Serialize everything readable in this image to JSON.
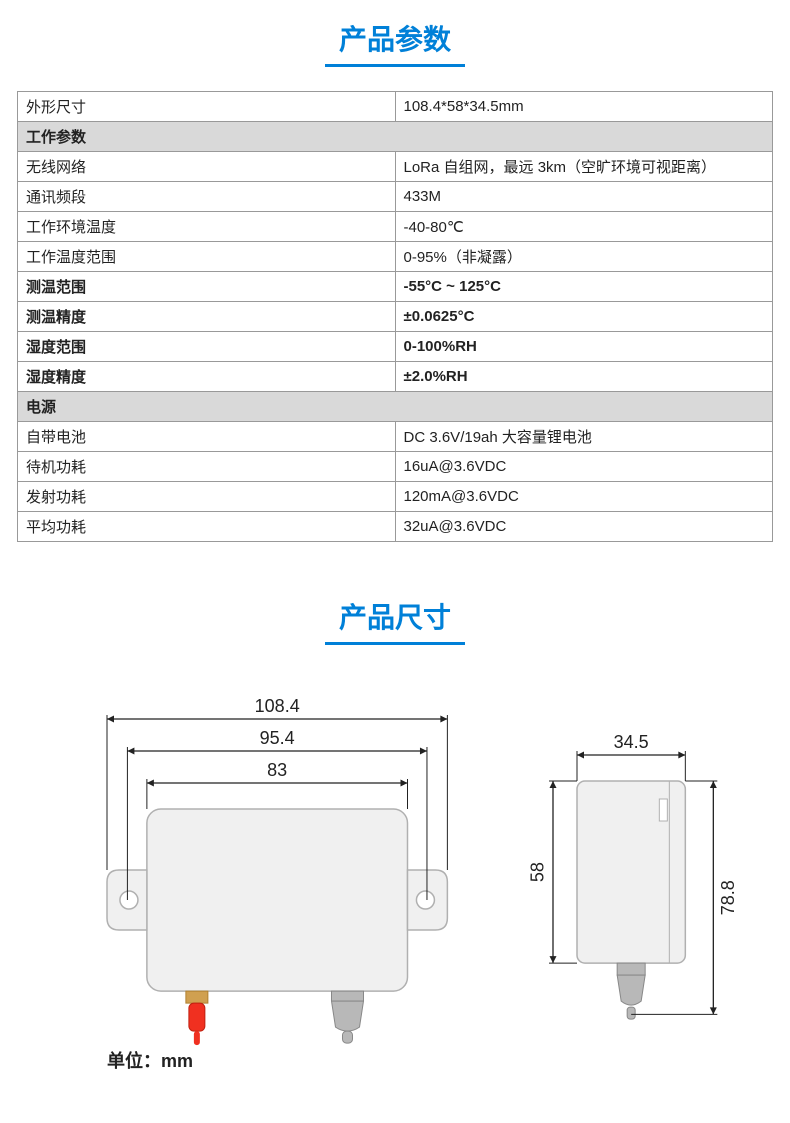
{
  "titles": {
    "params": "产品参数",
    "dims": "产品尺寸"
  },
  "specs": {
    "rows": [
      {
        "type": "data",
        "label": "外形尺寸",
        "value": "108.4*58*34.5mm",
        "bold": false
      },
      {
        "type": "section",
        "label": "工作参数"
      },
      {
        "type": "data",
        "label": "无线网络",
        "value": "LoRa 自组网，最远 3km（空旷环境可视距离）",
        "bold": false
      },
      {
        "type": "data",
        "label": "通讯频段",
        "value": "433M",
        "bold": false
      },
      {
        "type": "data",
        "label": "工作环境温度",
        "value": "-40-80℃",
        "bold": false
      },
      {
        "type": "data",
        "label": "工作温度范围",
        "value": "0-95%（非凝露）",
        "bold": false
      },
      {
        "type": "data",
        "label": "测温范围",
        "value": "-55°C ~ 125°C",
        "bold": true
      },
      {
        "type": "data",
        "label": "测温精度",
        "value": "±0.0625°C",
        "bold": true
      },
      {
        "type": "data",
        "label": "湿度范围",
        "value": "0-100%RH",
        "bold": true
      },
      {
        "type": "data",
        "label": "湿度精度",
        "value": "±2.0%RH",
        "bold": true
      },
      {
        "type": "section",
        "label": "电源"
      },
      {
        "type": "data",
        "label": "自带电池",
        "value": "DC 3.6V/19ah 大容量锂电池",
        "bold": false
      },
      {
        "type": "data",
        "label": "待机功耗",
        "value": "16uA@3.6VDC",
        "bold": false
      },
      {
        "type": "data",
        "label": "发射功耗",
        "value": "120mA@3.6VDC",
        "bold": false
      },
      {
        "type": "data",
        "label": "平均功耗",
        "value": "32uA@3.6VDC",
        "bold": false
      }
    ]
  },
  "diagram": {
    "unit_label": "单位：mm",
    "dims": {
      "w_outer": "108.4",
      "w_mid": "95.4",
      "w_inner": "83",
      "h_front": "58",
      "d_side": "34.5",
      "h_side": "78.8"
    },
    "colors": {
      "body_fill": "#f0f0f0",
      "body_stroke": "#b0b0b0",
      "line": "#222222",
      "antenna": "#f03020",
      "gland": "#b8b8b8",
      "text": "#222222"
    }
  }
}
